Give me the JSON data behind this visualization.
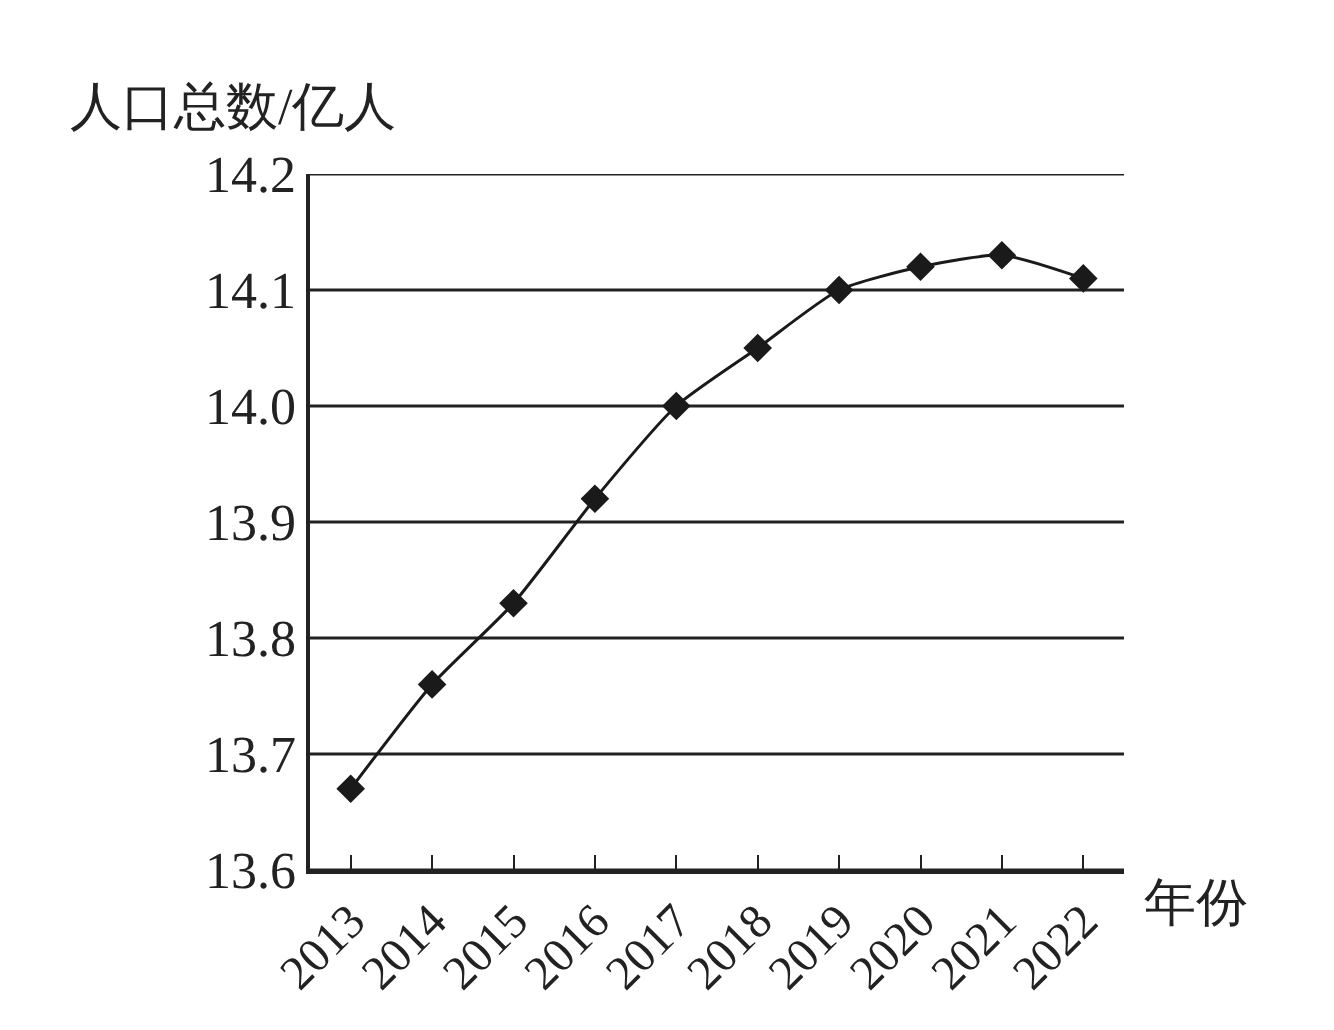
{
  "chart_data": {
    "type": "line",
    "ylabel": "人口总数/亿人",
    "xlabel": "年份",
    "categories": [
      "2013",
      "2014",
      "2015",
      "2016",
      "2017",
      "2018",
      "2019",
      "2020",
      "2021",
      "2022"
    ],
    "series": [
      {
        "color": "#1a1a1a",
        "values": [
          13.67,
          13.76,
          13.83,
          13.92,
          14.0,
          14.05,
          14.1,
          14.12,
          14.13,
          14.11
        ]
      }
    ],
    "ylim": [
      13.6,
      14.2
    ],
    "yticks": [
      {
        "value": 13.6,
        "label": "13.6"
      },
      {
        "value": 13.7,
        "label": "13.7"
      },
      {
        "value": 13.8,
        "label": "13.8"
      },
      {
        "value": 13.9,
        "label": "13.9"
      },
      {
        "value": 14.0,
        "label": "14.0"
      },
      {
        "value": 14.1,
        "label": "14.1"
      },
      {
        "value": 14.2,
        "label": "14.2"
      }
    ],
    "grid": "y",
    "marker": "diamond",
    "line_style": "solid"
  }
}
